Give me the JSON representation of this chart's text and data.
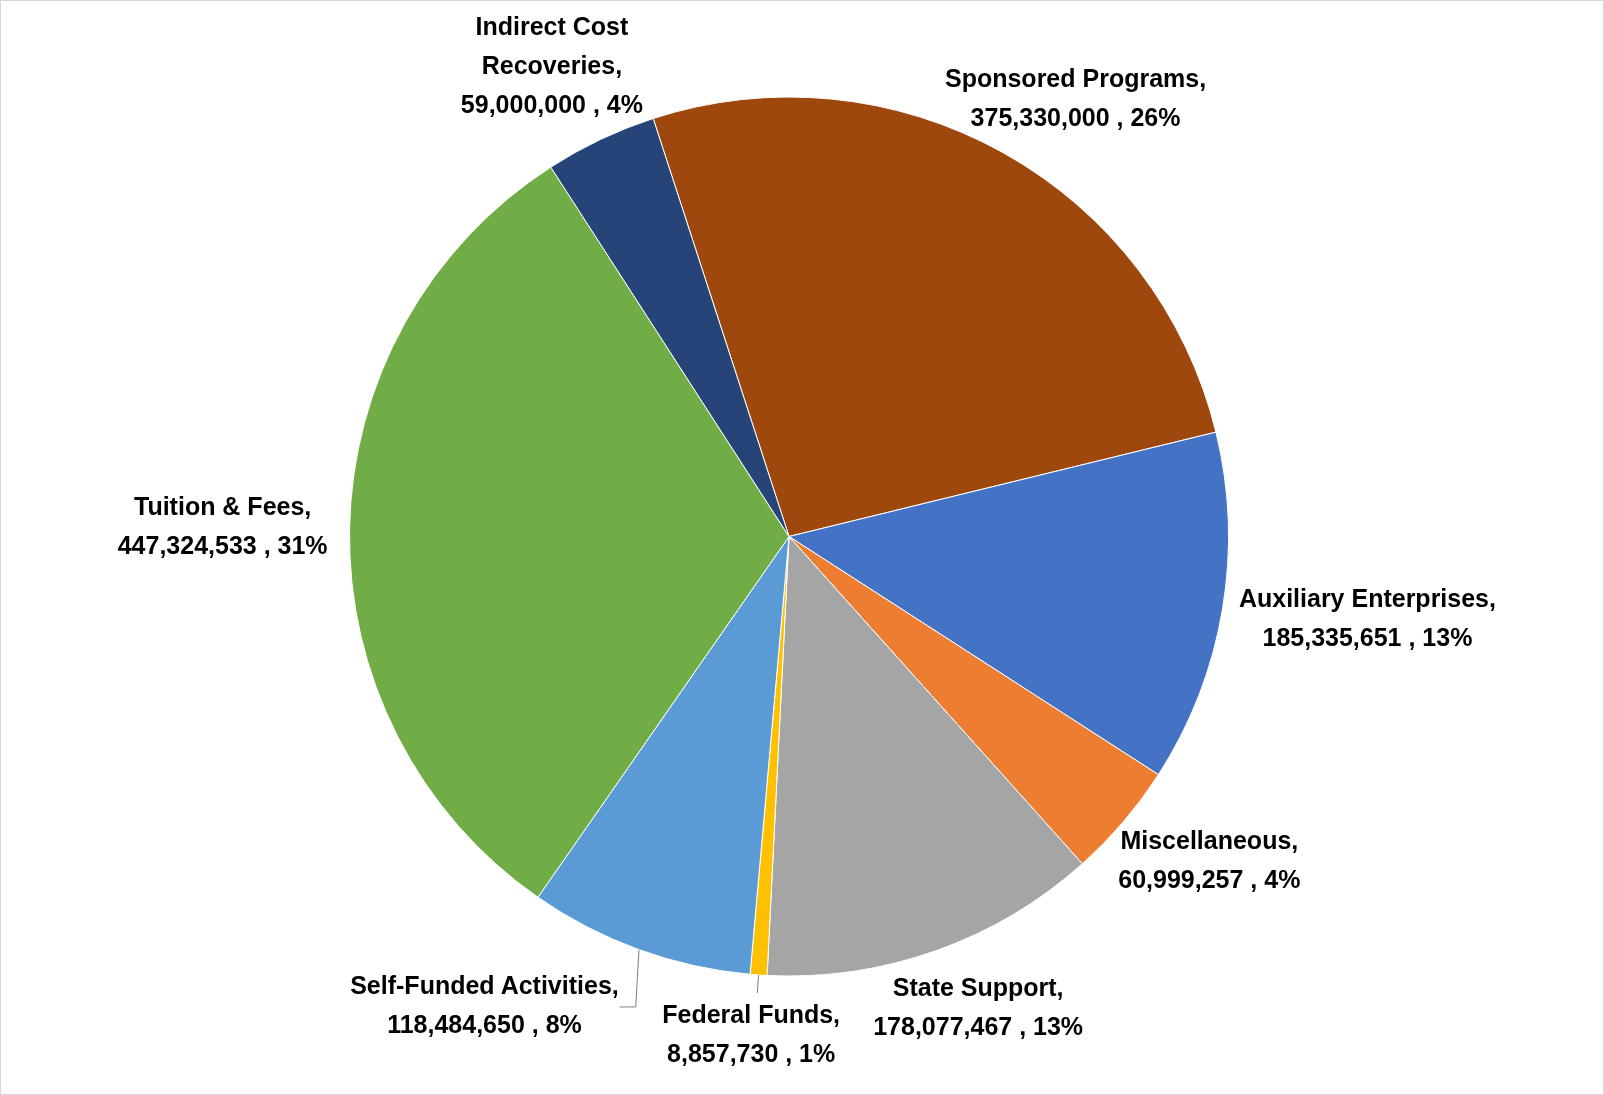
{
  "chart_data": {
    "type": "pie",
    "categories": [
      "Sponsored Programs",
      "Auxiliary Enterprises",
      "Miscellaneous",
      "State Support",
      "Federal Funds",
      "Self-Funded Activities",
      "Tuition & Fees",
      "Indirect Cost Recoveries"
    ],
    "values": [
      375330000,
      185335651,
      60999257,
      178077467,
      8857730,
      118484650,
      447324533,
      59000000
    ],
    "colors": [
      "#9e480e",
      "#4472c4",
      "#ed7d31",
      "#a5a5a5",
      "#ffc000",
      "#5b9bd5",
      "#70ad47",
      "#264478"
    ],
    "value_labels": [
      ", 375,330,000 , 26%",
      ", 185,335,651 , 13%",
      ", 60,999,257 , 4%",
      ", 178,077,467 , 13%",
      ", 8,857,730 , 1%",
      ", 118,484,650 , 8%",
      ", 447,324,533 , 31%",
      ", 59,000,000 , 4%"
    ],
    "legend": false
  }
}
